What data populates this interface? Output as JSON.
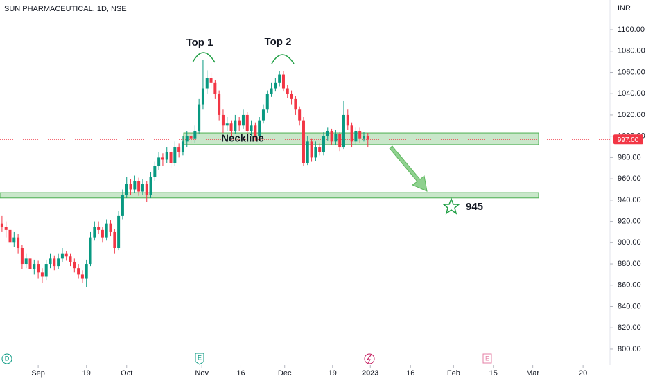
{
  "chart_data": {
    "type": "candlestick",
    "title": "SUN PHARMACEUTICAL, 1D, NSE",
    "currency": "INR",
    "ylim": [
      785,
      1128
    ],
    "yticks": [
      {
        "value": 800,
        "label": "800.00"
      },
      {
        "value": 820,
        "label": "820.00"
      },
      {
        "value": 840,
        "label": "840.00"
      },
      {
        "value": 860,
        "label": "860.00"
      },
      {
        "value": 880,
        "label": "880.00"
      },
      {
        "value": 900,
        "label": "900.00"
      },
      {
        "value": 920,
        "label": "920.00"
      },
      {
        "value": 940,
        "label": "940.00"
      },
      {
        "value": 960,
        "label": "960.00"
      },
      {
        "value": 980,
        "label": "980.00"
      },
      {
        "value": 1000,
        "label": "1000.00"
      },
      {
        "value": 1020,
        "label": "1020.00"
      },
      {
        "value": 1040,
        "label": "1040.00"
      },
      {
        "value": 1060,
        "label": "1060.00"
      },
      {
        "value": 1080,
        "label": "1080.00"
      },
      {
        "value": 1100,
        "label": "1100.00"
      }
    ],
    "xlim": [
      -0.5,
      151.2
    ],
    "xticks": [
      {
        "value": 9,
        "label": "Sep"
      },
      {
        "value": 21,
        "label": "19"
      },
      {
        "value": 31,
        "label": "Oct"
      },
      {
        "value": 49.7,
        "label": "Nov"
      },
      {
        "value": 59.4,
        "label": "16"
      },
      {
        "value": 70.3,
        "label": "Dec"
      },
      {
        "value": 82.2,
        "label": "19"
      },
      {
        "value": 91.6,
        "label": "2023"
      },
      {
        "value": 101.6,
        "label": "16"
      },
      {
        "value": 112.3,
        "label": "Feb"
      },
      {
        "value": 122.2,
        "label": "15"
      },
      {
        "value": 132,
        "label": "Mar"
      },
      {
        "value": 144.5,
        "label": "20"
      }
    ],
    "up_color": "#089981",
    "down_color": "#f23645",
    "ohlc": [
      [
        918,
        925,
        910,
        915
      ],
      [
        915,
        920,
        905,
        912
      ],
      [
        912,
        914,
        895,
        900
      ],
      [
        900,
        910,
        896,
        905
      ],
      [
        905,
        908,
        890,
        895
      ],
      [
        895,
        898,
        875,
        880
      ],
      [
        880,
        890,
        876,
        885
      ],
      [
        885,
        888,
        866,
        875
      ],
      [
        875,
        884,
        870,
        880
      ],
      [
        880,
        883,
        866,
        872
      ],
      [
        872,
        876,
        862,
        868
      ],
      [
        868,
        884,
        865,
        880
      ],
      [
        880,
        890,
        876,
        885
      ],
      [
        885,
        888,
        874,
        878
      ],
      [
        878,
        890,
        875,
        885
      ],
      [
        885,
        895,
        882,
        890
      ],
      [
        890,
        892,
        883,
        887
      ],
      [
        887,
        890,
        878,
        882
      ],
      [
        882,
        885,
        872,
        876
      ],
      [
        876,
        880,
        866,
        870
      ],
      [
        870,
        874,
        862,
        866
      ],
      [
        866,
        884,
        858,
        880
      ],
      [
        880,
        910,
        878,
        905
      ],
      [
        905,
        920,
        902,
        915
      ],
      [
        915,
        920,
        908,
        912
      ],
      [
        912,
        915,
        900,
        905
      ],
      [
        905,
        922,
        902,
        918
      ],
      [
        918,
        921,
        906,
        910
      ],
      [
        910,
        913,
        890,
        895
      ],
      [
        895,
        930,
        893,
        925
      ],
      [
        925,
        950,
        922,
        945
      ],
      [
        945,
        962,
        942,
        955
      ],
      [
        955,
        960,
        945,
        950
      ],
      [
        950,
        963,
        947,
        958
      ],
      [
        958,
        961,
        944,
        948
      ],
      [
        948,
        960,
        945,
        955
      ],
      [
        955,
        958,
        938,
        945
      ],
      [
        945,
        966,
        942,
        962
      ],
      [
        962,
        976,
        958,
        972
      ],
      [
        972,
        985,
        968,
        980
      ],
      [
        980,
        984,
        972,
        978
      ],
      [
        978,
        990,
        975,
        985
      ],
      [
        985,
        988,
        970,
        975
      ],
      [
        975,
        995,
        972,
        990
      ],
      [
        990,
        993,
        980,
        985
      ],
      [
        985,
        1000,
        982,
        995
      ],
      [
        995,
        1005,
        990,
        1000
      ],
      [
        1000,
        1003,
        993,
        998
      ],
      [
        998,
        1010,
        994,
        1005
      ],
      [
        1005,
        1035,
        1002,
        1030
      ],
      [
        1030,
        1072,
        1025,
        1045
      ],
      [
        1045,
        1062,
        1040,
        1055
      ],
      [
        1055,
        1060,
        1045,
        1050
      ],
      [
        1050,
        1053,
        1035,
        1040
      ],
      [
        1040,
        1043,
        1015,
        1020
      ],
      [
        1020,
        1025,
        1003,
        1010
      ],
      [
        1010,
        1018,
        1005,
        1012
      ],
      [
        1012,
        1015,
        1000,
        1005
      ],
      [
        1005,
        1020,
        1002,
        1015
      ],
      [
        1015,
        1018,
        1005,
        1010
      ],
      [
        1010,
        1025,
        1007,
        1020
      ],
      [
        1020,
        1023,
        1000,
        1005
      ],
      [
        1005,
        1015,
        1000,
        1010
      ],
      [
        1010,
        1013,
        996,
        1000
      ],
      [
        1000,
        1018,
        997,
        1015
      ],
      [
        1015,
        1030,
        1012,
        1025
      ],
      [
        1025,
        1043,
        1022,
        1040
      ],
      [
        1040,
        1050,
        1037,
        1045
      ],
      [
        1045,
        1055,
        1042,
        1050
      ],
      [
        1050,
        1061,
        1047,
        1058
      ],
      [
        1058,
        1061,
        1042,
        1045
      ],
      [
        1045,
        1048,
        1036,
        1040
      ],
      [
        1040,
        1043,
        1030,
        1035
      ],
      [
        1035,
        1038,
        1020,
        1025
      ],
      [
        1025,
        1028,
        1010,
        1015
      ],
      [
        1015,
        1018,
        972,
        975
      ],
      [
        975,
        1000,
        973,
        995
      ],
      [
        995,
        998,
        976,
        980
      ],
      [
        980,
        995,
        977,
        990
      ],
      [
        990,
        993,
        982,
        985
      ],
      [
        985,
        1004,
        982,
        1000
      ],
      [
        1000,
        1008,
        996,
        1005
      ],
      [
        1005,
        1007,
        992,
        995
      ],
      [
        995,
        1006,
        992,
        1002
      ],
      [
        1002,
        1004,
        986,
        990
      ],
      [
        990,
        1033,
        988,
        1020
      ],
      [
        1020,
        1025,
        1006,
        1010
      ],
      [
        1010,
        1013,
        990,
        995
      ],
      [
        995,
        1008,
        992,
        1005
      ],
      [
        1005,
        1008,
        994,
        998
      ],
      [
        998,
        1004,
        995,
        1000
      ],
      [
        1000,
        1003,
        990,
        997
      ]
    ],
    "last_price": {
      "value": 997,
      "label": "997.00"
    },
    "zones": [
      {
        "label": "Neckline",
        "low": 992,
        "high": 1003
      },
      {
        "low": 942,
        "high": 947
      }
    ],
    "annotations": [
      "Top 1",
      "Top 2"
    ],
    "target_label": "945",
    "event_markers": [
      "D",
      "E",
      "E"
    ]
  }
}
